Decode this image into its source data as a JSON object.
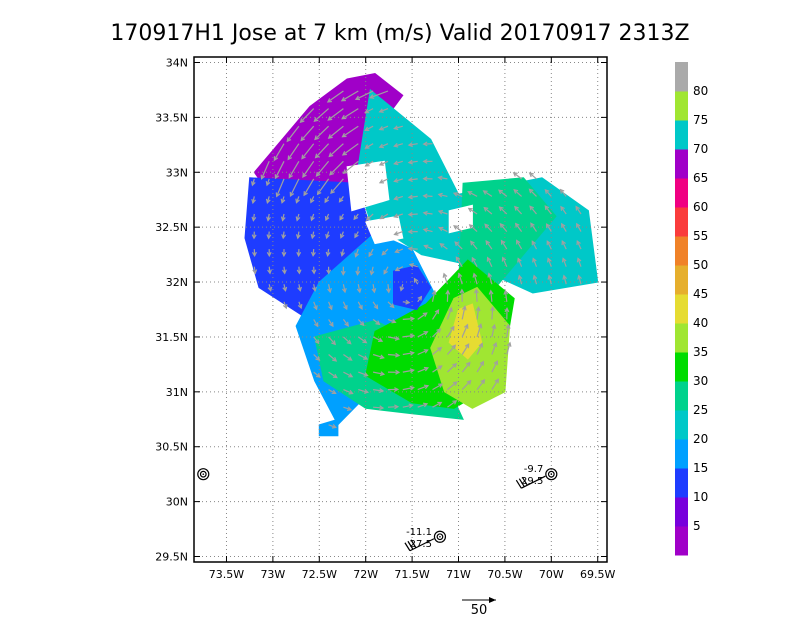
{
  "chart_data": {
    "type": "heatmap",
    "title": "170917H1 Jose at 7 km (m/s) Valid 20170917 2313Z",
    "x_ticks": [
      "73.5W",
      "73W",
      "72.5W",
      "72W",
      "71.5W",
      "71W",
      "70.5W",
      "70W",
      "69.5W"
    ],
    "x_tick_values": [
      -73.5,
      -73.0,
      -72.5,
      -72.0,
      -71.5,
      -71.0,
      -70.5,
      -70.0,
      -69.5
    ],
    "y_ticks": [
      "29.5N",
      "30N",
      "30.5N",
      "31N",
      "31.5N",
      "32N",
      "32.5N",
      "33N",
      "33.5N",
      "34N"
    ],
    "y_tick_values": [
      29.5,
      30.0,
      30.5,
      31.0,
      31.5,
      32.0,
      32.5,
      33.0,
      33.5,
      34.0
    ],
    "xlim": [
      -73.85,
      -69.4
    ],
    "ylim": [
      29.45,
      34.05
    ],
    "grid": true,
    "colorbar": {
      "levels": [
        0,
        5,
        10,
        15,
        20,
        25,
        30,
        35,
        40,
        45,
        50,
        55,
        60,
        65,
        70,
        75,
        80,
        85
      ],
      "labels": [
        "5",
        "10",
        "15",
        "20",
        "25",
        "30",
        "35",
        "40",
        "45",
        "50",
        "55",
        "60",
        "65",
        "70",
        "75",
        "80"
      ],
      "label_values": [
        5,
        10,
        15,
        20,
        25,
        30,
        35,
        40,
        45,
        50,
        55,
        60,
        65,
        70,
        75,
        80
      ],
      "colors": [
        "#a000c8",
        "#7800dc",
        "#1e3cff",
        "#00a0ff",
        "#00c8c8",
        "#00d28c",
        "#00dc00",
        "#a0e632",
        "#e6dc32",
        "#e6af2d",
        "#f08228",
        "#fa3c3c",
        "#f00082",
        "#a000c8",
        "#00c8c8",
        "#a0e632",
        "#aaaaaa"
      ]
    },
    "regions": [
      {
        "value": 68,
        "polygon": [
          [
            -72.6,
            33.6
          ],
          [
            -72.2,
            33.85
          ],
          [
            -71.9,
            33.9
          ],
          [
            -71.6,
            33.7
          ],
          [
            -71.95,
            33.3
          ],
          [
            -72.1,
            32.9
          ],
          [
            -72.55,
            32.6
          ],
          [
            -72.95,
            32.7
          ],
          [
            -73.2,
            33.0
          ],
          [
            -72.85,
            33.35
          ]
        ]
      },
      {
        "value": 12,
        "polygon": [
          [
            -73.25,
            32.95
          ],
          [
            -72.1,
            32.9
          ],
          [
            -71.95,
            32.5
          ],
          [
            -71.85,
            31.9
          ],
          [
            -72.0,
            31.5
          ],
          [
            -72.6,
            31.65
          ],
          [
            -73.15,
            31.95
          ],
          [
            -73.3,
            32.4
          ]
        ]
      },
      {
        "value": 18,
        "polygon": [
          [
            -72.5,
            32.0
          ],
          [
            -71.9,
            32.45
          ],
          [
            -71.5,
            32.3
          ],
          [
            -71.2,
            31.8
          ],
          [
            -71.4,
            31.3
          ],
          [
            -71.95,
            31.0
          ],
          [
            -72.3,
            30.7
          ],
          [
            -72.55,
            31.1
          ],
          [
            -72.75,
            31.6
          ]
        ]
      },
      {
        "value": 22,
        "polygon": [
          [
            -71.95,
            33.75
          ],
          [
            -71.3,
            33.3
          ],
          [
            -71.0,
            32.8
          ],
          [
            -70.7,
            32.85
          ],
          [
            -70.1,
            32.95
          ],
          [
            -69.6,
            32.65
          ],
          [
            -69.5,
            32.0
          ],
          [
            -70.2,
            31.9
          ],
          [
            -70.85,
            32.15
          ],
          [
            -71.4,
            32.25
          ],
          [
            -71.95,
            32.55
          ],
          [
            -72.1,
            32.95
          ]
        ]
      },
      {
        "value": 27,
        "polygon": [
          [
            -70.95,
            32.9
          ],
          [
            -70.3,
            32.95
          ],
          [
            -69.95,
            32.6
          ],
          [
            -70.25,
            32.3
          ],
          [
            -70.55,
            32.0
          ],
          [
            -70.75,
            31.8
          ],
          [
            -71.0,
            31.95
          ]
        ]
      },
      {
        "value": 27,
        "polygon": [
          [
            -72.55,
            31.5
          ],
          [
            -71.9,
            31.65
          ],
          [
            -71.3,
            31.4
          ],
          [
            -70.95,
            30.75
          ],
          [
            -71.5,
            30.8
          ],
          [
            -72.0,
            30.85
          ],
          [
            -72.45,
            31.1
          ]
        ]
      },
      {
        "value": 32,
        "polygon": [
          [
            -71.9,
            31.55
          ],
          [
            -71.35,
            31.8
          ],
          [
            -70.9,
            32.2
          ],
          [
            -70.4,
            31.85
          ],
          [
            -70.55,
            31.1
          ],
          [
            -71.05,
            30.85
          ],
          [
            -71.5,
            30.9
          ],
          [
            -72.0,
            31.15
          ]
        ]
      },
      {
        "value": 37,
        "polygon": [
          [
            -71.05,
            31.85
          ],
          [
            -70.8,
            31.95
          ],
          [
            -70.45,
            31.6
          ],
          [
            -70.5,
            31.0
          ],
          [
            -70.85,
            30.85
          ],
          [
            -71.15,
            31.0
          ],
          [
            -71.3,
            31.4
          ]
        ]
      },
      {
        "value": 42,
        "polygon": [
          [
            -71.0,
            31.75
          ],
          [
            -70.85,
            31.8
          ],
          [
            -70.75,
            31.45
          ],
          [
            -70.9,
            31.3
          ],
          [
            -71.1,
            31.45
          ]
        ]
      },
      {
        "value": 11,
        "polygon": [
          [
            -71.7,
            32.1
          ],
          [
            -71.45,
            32.15
          ],
          [
            -71.3,
            31.95
          ],
          [
            -71.45,
            31.75
          ],
          [
            -71.7,
            31.8
          ]
        ]
      },
      {
        "value": 17,
        "polygon": [
          [
            -72.5,
            30.7
          ],
          [
            -72.3,
            30.75
          ],
          [
            -72.3,
            30.6
          ],
          [
            -72.5,
            30.6
          ]
        ]
      }
    ],
    "blanks": [
      {
        "polygon": [
          [
            -72.2,
            33.05
          ],
          [
            -71.8,
            33.1
          ],
          [
            -71.75,
            32.75
          ],
          [
            -72.15,
            32.65
          ]
        ]
      },
      {
        "polygon": [
          [
            -72.0,
            32.55
          ],
          [
            -71.65,
            32.6
          ],
          [
            -71.6,
            32.4
          ],
          [
            -71.9,
            32.35
          ]
        ]
      },
      {
        "polygon": [
          [
            -71.1,
            32.65
          ],
          [
            -70.85,
            32.7
          ],
          [
            -70.85,
            32.5
          ],
          [
            -71.1,
            32.45
          ]
        ]
      }
    ],
    "wind_vectors": {
      "reference_speed": 50,
      "reference_label": "50"
    },
    "stations": [
      {
        "lon": -73.75,
        "lat": 30.25,
        "label_top": "",
        "label_bottom": ""
      },
      {
        "lon": -70.0,
        "lat": 30.25,
        "label_top": "-9.7",
        "label_bottom": "29.5"
      },
      {
        "lon": -71.2,
        "lat": 29.68,
        "label_top": "-11.1",
        "label_bottom": "27.5"
      }
    ]
  }
}
